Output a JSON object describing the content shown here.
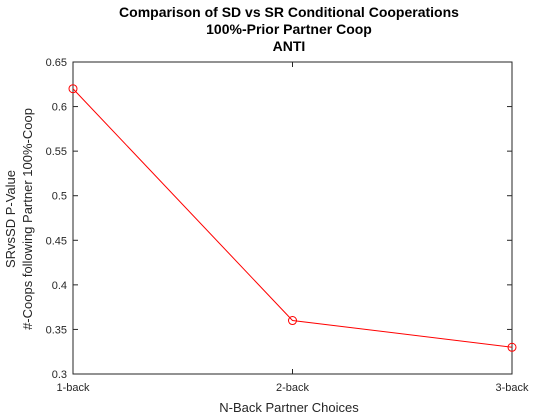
{
  "chart_data": {
    "type": "line",
    "title_lines": [
      "Comparison of SD vs SR Conditional Cooperations",
      "100%-Prior Partner Coop",
      "ANTI"
    ],
    "xlabel": "N-Back Partner Choices",
    "ylabel_lines": [
      "SRvsSD P-Value",
      "#-Coops following Partner 100%-Coop"
    ],
    "categories": [
      "1-back",
      "2-back",
      "3-back"
    ],
    "values": [
      0.62,
      0.36,
      0.33
    ],
    "ylim": [
      0.3,
      0.65
    ],
    "yticks": [
      "0.3",
      "0.35",
      "0.4",
      "0.45",
      "0.5",
      "0.55",
      "0.6",
      "0.65"
    ],
    "grid": false,
    "marker": "circle",
    "colors": {
      "series": "#ff0000",
      "axes": "#262626"
    }
  }
}
